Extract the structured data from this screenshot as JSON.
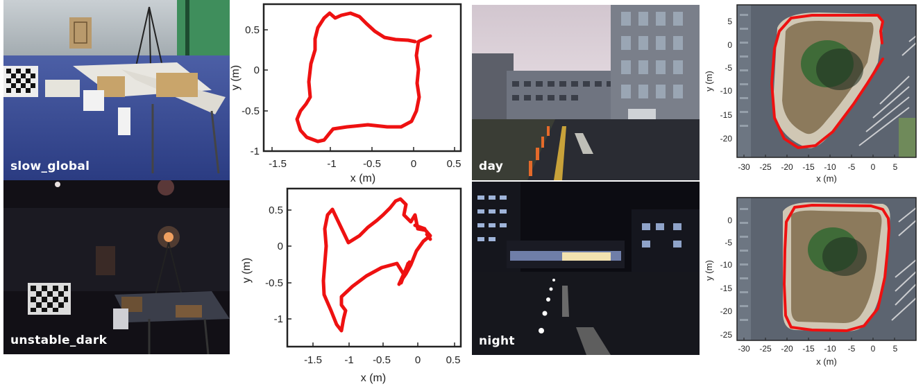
{
  "photos": {
    "slow_global": "slow_global",
    "unstable_dark": "unstable_dark",
    "day": "day",
    "night": "night"
  },
  "plots": {
    "traj_top": {
      "xlabel": "x (m)",
      "ylabel": "y (m)",
      "xticks": [
        "-1.5",
        "-1",
        "-0.5",
        "0",
        "0.5"
      ],
      "yticks": [
        "0.5",
        "0",
        "-0.5",
        "-1"
      ]
    },
    "traj_bottom": {
      "xlabel": "x (m)",
      "ylabel": "y (m)",
      "xticks": [
        "-1.5",
        "-1",
        "-0.5",
        "0",
        "0.5"
      ],
      "yticks": [
        "0.5",
        "0",
        "-0.5",
        "-1"
      ]
    },
    "map_top": {
      "xlabel": "x (m)",
      "ylabel": "y (m)",
      "xticks": [
        "-30",
        "-25",
        "-20",
        "-15",
        "-10",
        "-5",
        "0",
        "5"
      ],
      "yticks": [
        "5",
        "0",
        "-5",
        "-10",
        "-15",
        "-20"
      ]
    },
    "map_bottom": {
      "xlabel": "x (m)",
      "ylabel": "y (m)",
      "xticks": [
        "-30",
        "-25",
        "-20",
        "-15",
        "-10",
        "-5",
        "0",
        "5"
      ],
      "yticks": [
        "0",
        "-5",
        "-10",
        "-15",
        "-20",
        "-25"
      ]
    }
  },
  "colors": {
    "trajectory": "#ee1111"
  }
}
